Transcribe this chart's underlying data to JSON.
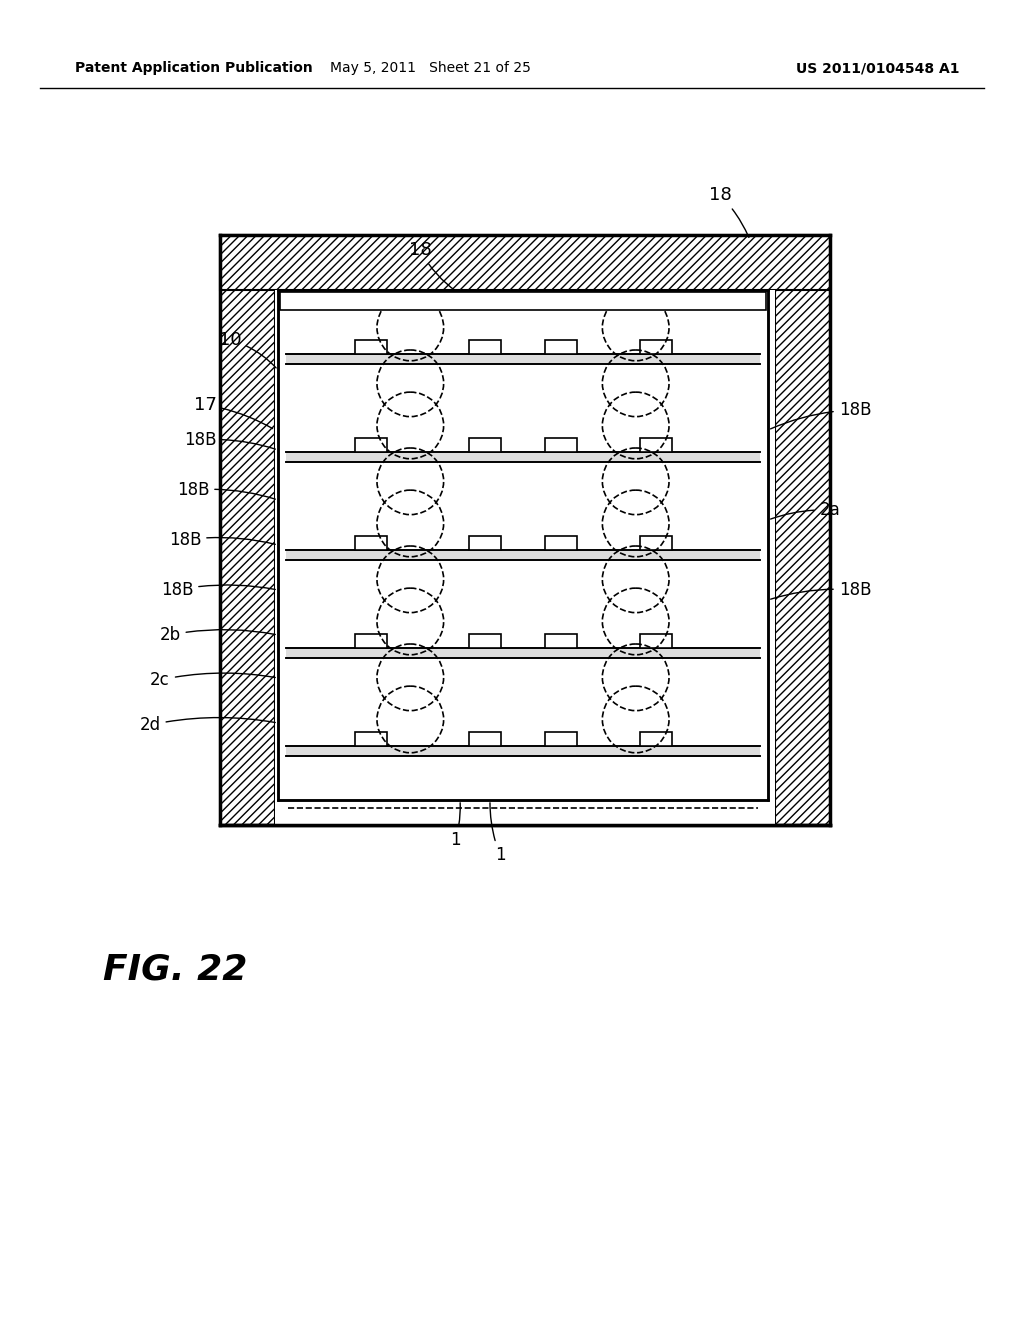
{
  "bg_color": "#ffffff",
  "header_left": "Patent Application Publication",
  "header_mid": "May 5, 2011   Sheet 21 of 25",
  "header_right": "US 2011/0104548 A1",
  "fig_label": "FIG. 22"
}
